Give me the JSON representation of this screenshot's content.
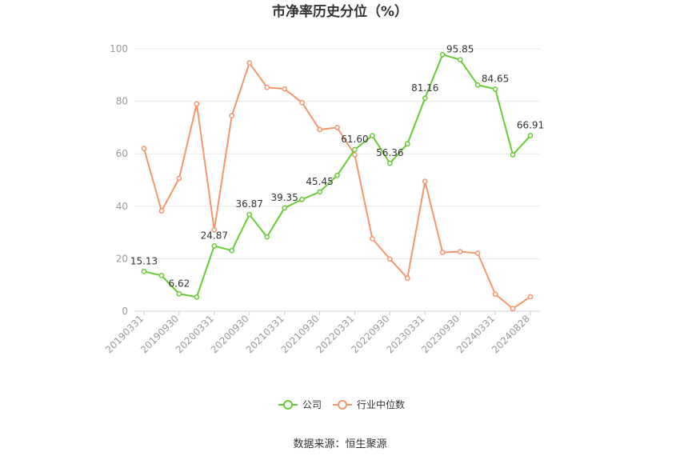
{
  "chart_data": {
    "type": "line",
    "title": "市净率历史分位（%）",
    "source": "数据来源：恒生聚源",
    "ylim": [
      0,
      100
    ],
    "yticks": [
      0,
      20,
      40,
      60,
      80,
      100
    ],
    "grid": true,
    "legend_position": "bottom",
    "x_tick_labels": [
      "20190331",
      "20190930",
      "20200331",
      "20200930",
      "20210331",
      "20210930",
      "20220331",
      "20220930",
      "20230331",
      "20230930",
      "20240331",
      "20240828"
    ],
    "x": [
      "20190331",
      "20190630",
      "20190930",
      "20191231",
      "20200331",
      "20200630",
      "20200930",
      "20201231",
      "20210331",
      "20210630",
      "20210930",
      "20211231",
      "20220331",
      "20220630",
      "20220930",
      "20221231",
      "20230331",
      "20230630",
      "20230930",
      "20231231",
      "20240331",
      "20240630",
      "20240828"
    ],
    "series": [
      {
        "name": "公司",
        "color": "#66cc33",
        "values": [
          15.13,
          13.6,
          6.62,
          5.4,
          24.87,
          23.1,
          36.87,
          28.3,
          39.35,
          42.6,
          45.45,
          51.8,
          61.6,
          66.9,
          56.36,
          63.8,
          81.16,
          97.8,
          95.85,
          86.2,
          84.65,
          59.6,
          66.91
        ],
        "labels": {
          "0": "15.13",
          "2": "6.62",
          "4": "24.87",
          "6": "36.87",
          "8": "39.35",
          "10": "45.45",
          "12": "61.60",
          "14": "56.36",
          "16": "81.16",
          "18": "95.85",
          "20": "84.65",
          "22": "66.91"
        }
      },
      {
        "name": "行业中位数",
        "color": "#f4956a",
        "values": [
          62.0,
          38.2,
          50.6,
          79.0,
          31.0,
          74.5,
          94.6,
          85.3,
          84.7,
          79.5,
          69.2,
          70.0,
          59.6,
          27.6,
          19.9,
          12.6,
          49.5,
          22.4,
          22.7,
          22.1,
          6.5,
          1.0,
          5.5
        ]
      }
    ]
  }
}
